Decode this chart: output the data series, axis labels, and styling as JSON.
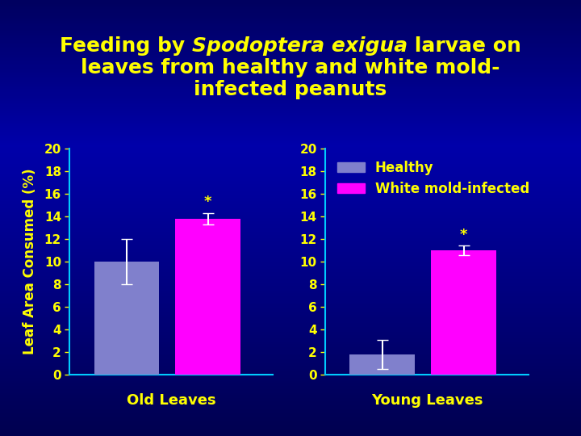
{
  "title_parts": [
    [
      "Feeding by ",
      false
    ],
    [
      "Spodoptera exigua",
      true
    ],
    [
      " larvae on",
      false
    ]
  ],
  "title_line2": "leaves from healthy and white mold-",
  "title_line3": "infected peanuts",
  "groups": [
    "Old Leaves",
    "Young Leaves"
  ],
  "healthy_values": [
    10.0,
    1.8
  ],
  "infected_values": [
    13.8,
    11.0
  ],
  "healthy_errors": [
    2.0,
    1.3
  ],
  "infected_errors": [
    0.5,
    0.4
  ],
  "healthy_color": "#8080CC",
  "infected_color": "#FF00FF",
  "bg_color_top": "#000080",
  "bg_color_bottom": "#000040",
  "spine_color": "#00CCFF",
  "title_color": "#FFFF00",
  "tick_color": "#FFFF00",
  "label_color": "#FFFF00",
  "ylabel": "Leaf Area Consumed (%)",
  "ylim": [
    0,
    20
  ],
  "yticks": [
    0,
    2,
    4,
    6,
    8,
    10,
    12,
    14,
    16,
    18,
    20
  ],
  "legend_labels": [
    "Healthy",
    "White mold-infected"
  ],
  "asterisk_fontsize": 13,
  "tick_fontsize": 11,
  "label_fontsize": 12,
  "title_fontsize": 18,
  "legend_fontsize": 12,
  "group_label_fontsize": 13
}
